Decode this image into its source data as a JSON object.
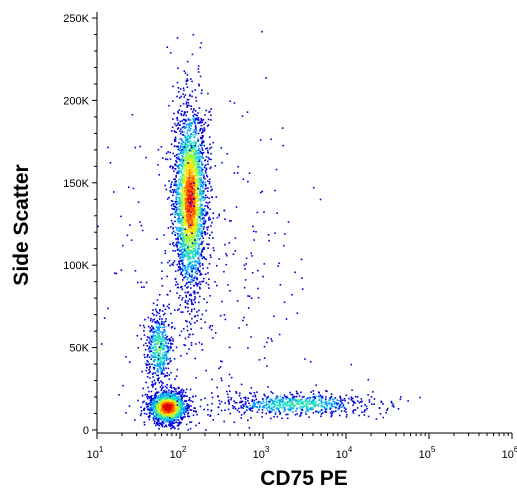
{
  "chart_data": {
    "type": "scatter",
    "subtype": "flow-cytometry-density-dot-plot",
    "title": "",
    "xlabel": "CD75 PE",
    "ylabel": "Side Scatter",
    "x_scale": "log",
    "y_scale": "linear",
    "xlim": [
      10,
      1000000
    ],
    "ylim": [
      0,
      250000
    ],
    "grid": false,
    "x_ticks": [
      {
        "value": 10,
        "base": "10",
        "exp": "1"
      },
      {
        "value": 100,
        "base": "10",
        "exp": "2"
      },
      {
        "value": 1000,
        "base": "10",
        "exp": "3"
      },
      {
        "value": 10000,
        "base": "10",
        "exp": "4"
      },
      {
        "value": 100000,
        "base": "10",
        "exp": "5"
      },
      {
        "value": 1000000,
        "base": "10",
        "exp": "6"
      }
    ],
    "y_ticks": [
      {
        "value": 0,
        "label": "0"
      },
      {
        "value": 50000,
        "label": "50K"
      },
      {
        "value": 100000,
        "label": "100K"
      },
      {
        "value": 150000,
        "label": "150K"
      },
      {
        "value": 200000,
        "label": "200K"
      },
      {
        "value": 250000,
        "label": "250K"
      }
    ],
    "density_colors": [
      "#0000d8",
      "#00a0ff",
      "#20e0c0",
      "#a0ff40",
      "#ffe000",
      "#ff6000",
      "#e00000"
    ],
    "populations": [
      {
        "x_center": 130,
        "y_center": 140000,
        "x_spread_decades": 0.1,
        "y_spread": 28000,
        "count": 2600,
        "peak_density": 0.9
      },
      {
        "x_center": 70,
        "y_center": 14000,
        "x_spread_decades": 0.12,
        "y_spread": 5000,
        "count": 1300,
        "peak_density": 1.0
      },
      {
        "x_center": 55,
        "y_center": 50000,
        "x_spread_decades": 0.08,
        "y_spread": 11000,
        "count": 450,
        "peak_density": 0.45
      },
      {
        "x_center": 2500,
        "y_center": 16000,
        "x_spread_decades": 0.45,
        "y_spread": 3500,
        "count": 650,
        "peak_density": 0.4
      },
      {
        "x_center": 200,
        "y_center": 90000,
        "x_spread_decades": 0.6,
        "y_spread": 60000,
        "count": 350,
        "peak_density": 0.05
      }
    ]
  }
}
